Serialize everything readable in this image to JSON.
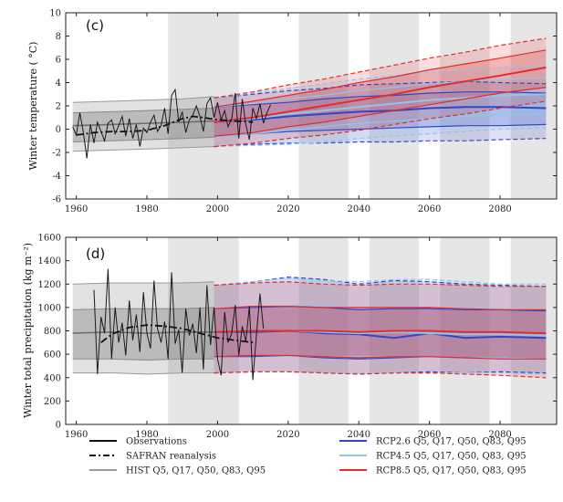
{
  "chart_data": [
    {
      "type": "line",
      "panel_label": "(c)",
      "xlabel": "",
      "ylabel": "Winter temperature ( °C)",
      "xlim": [
        1957,
        2096
      ],
      "ylim": [
        -6,
        10
      ],
      "xticks": [
        1960,
        1980,
        2000,
        2020,
        2040,
        2060,
        2080
      ],
      "yticks": [
        -6,
        -4,
        -2,
        0,
        2,
        4,
        6,
        8,
        10
      ],
      "shaded_periods": [
        [
          1986,
          2006
        ],
        [
          2023,
          2037
        ],
        [
          2043,
          2057
        ],
        [
          2063,
          2077
        ],
        [
          2083,
          2096
        ]
      ],
      "historical": {
        "x": [
          1959,
          1970,
          1980,
          1990,
          1999
        ],
        "q5": [
          -1.9,
          -1.8,
          -1.7,
          -1.6,
          -1.5
        ],
        "q17": [
          -1.1,
          -1.0,
          -0.9,
          -0.8,
          -0.7
        ],
        "q50": [
          0.3,
          0.4,
          0.5,
          0.6,
          0.7
        ],
        "q83": [
          1.4,
          1.5,
          1.6,
          1.7,
          1.8
        ],
        "q95": [
          2.3,
          2.4,
          2.5,
          2.6,
          2.8
        ]
      },
      "observations": {
        "x": [
          1959,
          1960,
          1961,
          1962,
          1963,
          1964,
          1965,
          1966,
          1967,
          1968,
          1969,
          1970,
          1971,
          1972,
          1973,
          1974,
          1975,
          1976,
          1977,
          1978,
          1979,
          1980,
          1981,
          1982,
          1983,
          1984,
          1985,
          1986,
          1987,
          1988,
          1989,
          1990,
          1991,
          1992,
          1993,
          1994,
          1995,
          1996,
          1997,
          1998,
          1999,
          2000,
          2001,
          2002,
          2003,
          2004,
          2005,
          2006,
          2007,
          2008,
          2009,
          2010,
          2011,
          2012,
          2013,
          2014,
          2015
        ],
        "y": [
          0.2,
          -0.5,
          1.4,
          -0.3,
          -2.5,
          0.4,
          -1.2,
          0.6,
          -0.2,
          -1.0,
          0.5,
          0.8,
          -0.4,
          0.3,
          1.1,
          -0.6,
          0.9,
          -0.8,
          0.4,
          -1.5,
          0.1,
          -0.3,
          0.6,
          1.2,
          -0.2,
          0.3,
          1.8,
          -0.4,
          2.9,
          3.4,
          0.6,
          1.5,
          -0.3,
          0.8,
          1.2,
          2.0,
          1.1,
          -0.2,
          2.2,
          2.7,
          1.0,
          2.3,
          0.8,
          1.6,
          0.2,
          0.9,
          3.1,
          -0.8,
          2.6,
          0.4,
          -0.9,
          1.8,
          0.9,
          2.2,
          0.5,
          1.4,
          2.1
        ]
      },
      "safran": {
        "x": [
          1960,
          1965,
          1970,
          1975,
          1980,
          1985,
          1990,
          1993,
          1996,
          2000,
          2005,
          2010
        ],
        "y": [
          -0.5,
          -0.3,
          -0.2,
          -0.2,
          -0.1,
          0.3,
          0.9,
          1.1,
          1.0,
          0.8,
          0.7,
          0.6
        ]
      },
      "projections": [
        {
          "name": "RCP2.6",
          "color": "#3346c9",
          "x": [
            1999,
            2010,
            2020,
            2030,
            2040,
            2050,
            2060,
            2070,
            2080,
            2093
          ],
          "q5": [
            -1.5,
            -1.3,
            -1.2,
            -1.2,
            -1.1,
            -1.1,
            -1.0,
            -1.0,
            -0.9,
            -0.8
          ],
          "q17": [
            -0.6,
            -0.4,
            -0.2,
            -0.1,
            0.0,
            0.1,
            0.2,
            0.3,
            0.3,
            0.4
          ],
          "q50": [
            0.6,
            0.8,
            1.1,
            1.3,
            1.5,
            1.6,
            1.8,
            1.9,
            1.9,
            1.8
          ],
          "q83": [
            1.9,
            2.1,
            2.3,
            2.6,
            2.8,
            2.9,
            3.1,
            3.2,
            3.2,
            3.1
          ],
          "q95": [
            2.7,
            3.0,
            3.3,
            3.5,
            3.8,
            3.9,
            4.0,
            4.1,
            4.0,
            3.9
          ]
        },
        {
          "name": "RCP4.5",
          "color": "#8fc6ea",
          "x": [
            1999,
            2010,
            2020,
            2030,
            2040,
            2050,
            2060,
            2070,
            2080,
            2093
          ],
          "q5": [
            -1.5,
            -1.4,
            -1.3,
            -1.1,
            -0.8,
            -0.6,
            -0.4,
            -0.2,
            0.0,
            0.1
          ],
          "q17": [
            -0.6,
            -0.4,
            -0.1,
            0.2,
            0.5,
            0.7,
            0.9,
            1.1,
            1.2,
            1.3
          ],
          "q50": [
            0.6,
            0.9,
            1.3,
            1.6,
            1.9,
            2.2,
            2.5,
            2.7,
            2.9,
            3.0
          ],
          "q83": [
            1.9,
            2.2,
            2.6,
            2.9,
            3.3,
            3.6,
            3.9,
            4.1,
            4.3,
            4.4
          ],
          "q95": [
            2.7,
            3.1,
            3.5,
            3.9,
            4.3,
            4.6,
            4.9,
            5.1,
            5.3,
            5.4
          ]
        },
        {
          "name": "RCP8.5",
          "color": "#e52b2b",
          "x": [
            1999,
            2010,
            2020,
            2030,
            2040,
            2050,
            2060,
            2070,
            2080,
            2093
          ],
          "q5": [
            -1.5,
            -1.2,
            -0.8,
            -0.5,
            -0.1,
            0.4,
            0.9,
            1.3,
            1.8,
            2.4
          ],
          "q17": [
            -0.6,
            -0.3,
            0.2,
            0.6,
            1.1,
            1.6,
            2.1,
            2.6,
            3.1,
            3.6
          ],
          "q50": [
            0.6,
            1.0,
            1.5,
            2.0,
            2.5,
            3.0,
            3.6,
            4.1,
            4.6,
            5.3
          ],
          "q83": [
            1.9,
            2.4,
            2.9,
            3.4,
            4.0,
            4.5,
            5.1,
            5.6,
            6.1,
            6.8
          ],
          "q95": [
            2.7,
            3.2,
            3.8,
            4.3,
            4.9,
            5.5,
            6.1,
            6.6,
            7.2,
            7.8
          ]
        }
      ]
    },
    {
      "type": "line",
      "panel_label": "(d)",
      "xlabel": "",
      "ylabel": "Winter total precipitation (kg m⁻²)",
      "xlim": [
        1957,
        2096
      ],
      "ylim": [
        0,
        1600
      ],
      "xticks": [
        1960,
        1980,
        2000,
        2020,
        2040,
        2060,
        2080
      ],
      "yticks": [
        0,
        200,
        400,
        600,
        800,
        1000,
        1200,
        1400,
        1600
      ],
      "shaded_periods": [
        [
          1986,
          2006
        ],
        [
          2023,
          2037
        ],
        [
          2043,
          2057
        ],
        [
          2063,
          2077
        ],
        [
          2083,
          2096
        ]
      ],
      "historical": {
        "x": [
          1959,
          1970,
          1980,
          1990,
          1999
        ],
        "q5": [
          440,
          440,
          430,
          440,
          440
        ],
        "q17": [
          560,
          560,
          550,
          560,
          560
        ],
        "q50": [
          780,
          790,
          780,
          790,
          790
        ],
        "q83": [
          980,
          990,
          990,
          990,
          1000
        ],
        "q95": [
          1200,
          1210,
          1210,
          1210,
          1220
        ]
      },
      "observations": {
        "x": [
          1965,
          1966,
          1967,
          1968,
          1969,
          1970,
          1971,
          1972,
          1973,
          1974,
          1975,
          1976,
          1977,
          1978,
          1979,
          1980,
          1981,
          1982,
          1983,
          1984,
          1985,
          1986,
          1987,
          1988,
          1989,
          1990,
          1991,
          1992,
          1993,
          1994,
          1995,
          1996,
          1997,
          1998,
          1999,
          2000,
          2001,
          2002,
          2003,
          2004,
          2005,
          2006,
          2007,
          2008,
          2009,
          2010,
          2011,
          2012,
          2013
        ],
        "y": [
          1150,
          430,
          920,
          780,
          1330,
          560,
          1000,
          700,
          870,
          590,
          1060,
          720,
          940,
          620,
          1130,
          780,
          650,
          1230,
          820,
          700,
          880,
          560,
          1300,
          690,
          810,
          440,
          990,
          760,
          860,
          610,
          1000,
          470,
          1190,
          680,
          1000,
          560,
          420,
          960,
          700,
          780,
          1020,
          590,
          840,
          710,
          1010,
          380,
          760,
          1120,
          820
        ]
      },
      "safran": {
        "x": [
          1967,
          1970,
          1975,
          1980,
          1985,
          1990,
          1995,
          2000,
          2005,
          2010
        ],
        "y": [
          700,
          770,
          830,
          850,
          840,
          820,
          780,
          740,
          720,
          700
        ]
      },
      "projections": [
        {
          "name": "RCP2.6",
          "color": "#3346c9",
          "x": [
            1999,
            2010,
            2020,
            2030,
            2040,
            2050,
            2060,
            2070,
            2080,
            2093
          ],
          "q5": [
            440,
            450,
            450,
            440,
            430,
            440,
            450,
            440,
            450,
            440
          ],
          "q17": [
            580,
            580,
            590,
            570,
            560,
            570,
            580,
            570,
            570,
            560
          ],
          "q50": [
            790,
            790,
            800,
            780,
            770,
            740,
            780,
            740,
            750,
            740
          ],
          "q83": [
            990,
            1000,
            1010,
            1000,
            980,
            990,
            990,
            980,
            980,
            970
          ],
          "q95": [
            1190,
            1220,
            1260,
            1240,
            1200,
            1230,
            1220,
            1200,
            1190,
            1180
          ]
        },
        {
          "name": "RCP4.5",
          "color": "#8fc6ea",
          "x": [
            1999,
            2010,
            2020,
            2030,
            2040,
            2050,
            2060,
            2070,
            2080,
            2093
          ],
          "q5": [
            440,
            450,
            450,
            440,
            440,
            440,
            440,
            440,
            440,
            430
          ],
          "q17": [
            580,
            590,
            590,
            580,
            580,
            580,
            580,
            570,
            570,
            560
          ],
          "q50": [
            790,
            800,
            800,
            790,
            780,
            790,
            780,
            770,
            770,
            760
          ],
          "q83": [
            990,
            1010,
            1020,
            1010,
            1000,
            1000,
            1000,
            990,
            990,
            980
          ],
          "q95": [
            1190,
            1220,
            1250,
            1230,
            1220,
            1240,
            1240,
            1220,
            1200,
            1200
          ]
        },
        {
          "name": "RCP8.5",
          "color": "#e52b2b",
          "x": [
            1999,
            2010,
            2020,
            2030,
            2040,
            2050,
            2060,
            2070,
            2080,
            2093
          ],
          "q5": [
            440,
            450,
            450,
            440,
            430,
            440,
            440,
            430,
            420,
            400
          ],
          "q17": [
            580,
            590,
            590,
            580,
            570,
            580,
            580,
            570,
            560,
            560
          ],
          "q50": [
            790,
            800,
            800,
            800,
            790,
            800,
            800,
            790,
            790,
            780
          ],
          "q83": [
            990,
            1010,
            1010,
            1000,
            1000,
            1000,
            1000,
            990,
            980,
            980
          ],
          "q95": [
            1190,
            1210,
            1220,
            1200,
            1190,
            1200,
            1200,
            1190,
            1180,
            1180
          ]
        }
      ]
    }
  ],
  "legend": {
    "left": [
      {
        "label": "Observations",
        "style": "solid",
        "color": "#111111"
      },
      {
        "label": "SAFRAN reanalysis",
        "style": "dashdot",
        "color": "#111111"
      },
      {
        "label": "HIST Q5, Q17, Q50, Q83, Q95",
        "style": "solid",
        "color": "#9a9a9a"
      }
    ],
    "right": [
      {
        "label": "RCP2.6 Q5, Q17, Q50, Q83, Q95",
        "style": "solid",
        "color": "#3346c9"
      },
      {
        "label": "RCP4.5 Q5, Q17, Q50, Q83, Q95",
        "style": "solid",
        "color": "#8fc6ea"
      },
      {
        "label": "RCP8.5 Q5, Q17, Q50, Q83, Q95",
        "style": "solid",
        "color": "#e52b2b"
      }
    ]
  }
}
